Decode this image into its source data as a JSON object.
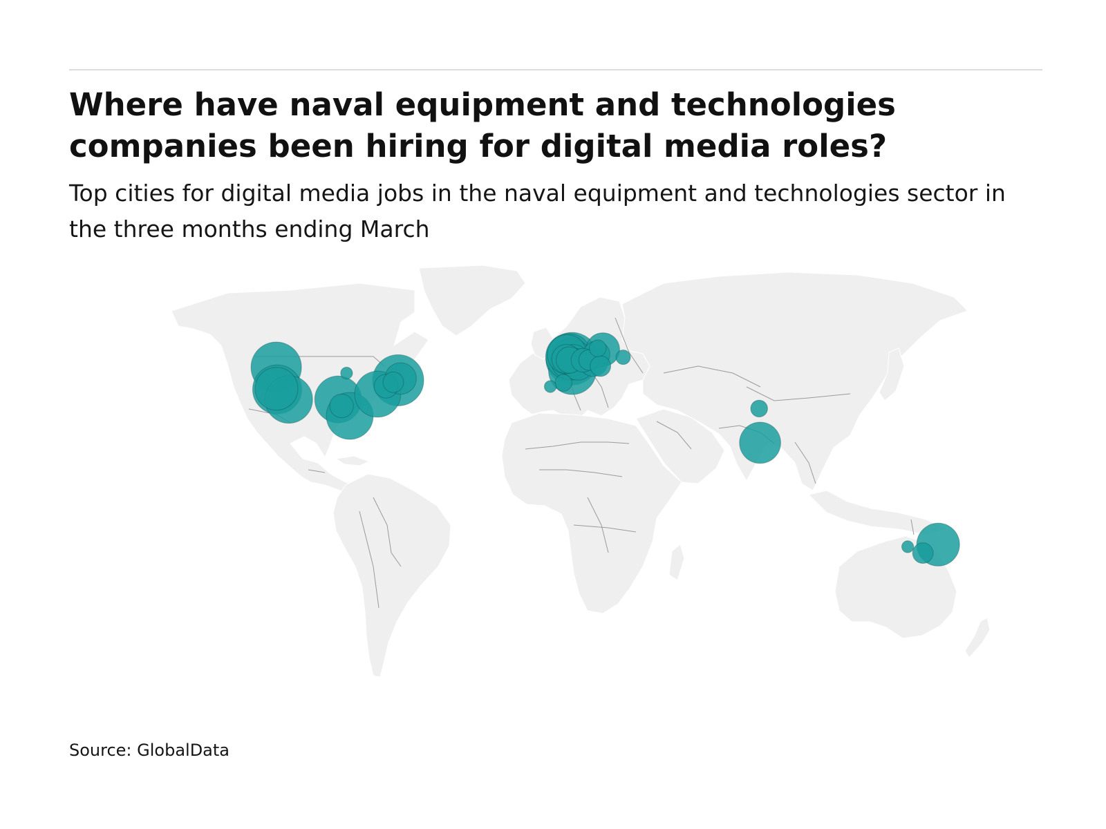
{
  "header": {
    "title": "Where have naval equipment and technologies companies been hiring for digital media roles?",
    "subtitle": "Top cities for digital media jobs in the naval equipment and technologies sector in the three months ending March"
  },
  "footer": {
    "source": "Source: GlobalData"
  },
  "colors": {
    "bubble": "#1a9e9e",
    "land": "#efefef",
    "border": "#9a9a9a",
    "rule": "#dcdcdc"
  },
  "chart_data": {
    "type": "bubble-map",
    "projection": "equirectangular",
    "bubbles": [
      {
        "lon": -122.4,
        "lat": 47.6,
        "value": 36
      },
      {
        "lon": -122.3,
        "lat": 37.7,
        "value": 26
      },
      {
        "lon": -122.0,
        "lat": 37.4,
        "value": 34
      },
      {
        "lon": -117.2,
        "lat": 32.8,
        "value": 32
      },
      {
        "lon": -93.3,
        "lat": 44.9,
        "value": 2
      },
      {
        "lon": -96.8,
        "lat": 32.8,
        "value": 31
      },
      {
        "lon": -95.4,
        "lat": 29.8,
        "value": 8
      },
      {
        "lon": -92.0,
        "lat": 25.2,
        "value": 31
      },
      {
        "lon": -80.5,
        "lat": 35.2,
        "value": 30
      },
      {
        "lon": -77.0,
        "lat": 38.9,
        "value": 8
      },
      {
        "lon": -74.0,
        "lat": 40.7,
        "value": 6
      },
      {
        "lon": -72.0,
        "lat": 41.6,
        "value": 37
      },
      {
        "lon": -71.0,
        "lat": 42.4,
        "value": 14
      },
      {
        "lon": -0.1,
        "lat": 51.5,
        "value": 39
      },
      {
        "lon": -1.5,
        "lat": 52.5,
        "value": 30
      },
      {
        "lon": -2.2,
        "lat": 53.5,
        "value": 22
      },
      {
        "lon": -0.5,
        "lat": 51.2,
        "value": 24
      },
      {
        "lon": 0.5,
        "lat": 50.8,
        "value": 14
      },
      {
        "lon": -2.5,
        "lat": 51.4,
        "value": 12
      },
      {
        "lon": -1.2,
        "lat": 50.9,
        "value": 10
      },
      {
        "lon": 0.0,
        "lat": 46.0,
        "value": 32
      },
      {
        "lon": 2.3,
        "lat": 48.9,
        "value": 14
      },
      {
        "lon": 4.4,
        "lat": 50.8,
        "value": 8
      },
      {
        "lon": 6.9,
        "lat": 50.9,
        "value": 6
      },
      {
        "lon": 8.7,
        "lat": 50.1,
        "value": 12
      },
      {
        "lon": 11.6,
        "lat": 48.1,
        "value": 6
      },
      {
        "lon": 10.0,
        "lat": 53.5,
        "value": 10
      },
      {
        "lon": 12.6,
        "lat": 55.7,
        "value": 16
      },
      {
        "lon": 10.5,
        "lat": 56.3,
        "value": 4
      },
      {
        "lon": 21.0,
        "lat": 52.2,
        "value": 3
      },
      {
        "lon": -3.7,
        "lat": 40.4,
        "value": 4
      },
      {
        "lon": -9.1,
        "lat": 38.7,
        "value": 2
      },
      {
        "lon": 77.2,
        "lat": 28.6,
        "value": 4
      },
      {
        "lon": 77.6,
        "lat": 12.9,
        "value": 24
      },
      {
        "lon": 151.2,
        "lat": -33.9,
        "value": 26
      },
      {
        "lon": 138.6,
        "lat": -34.9,
        "value": 2
      },
      {
        "lon": 144.9,
        "lat": -37.8,
        "value": 6
      }
    ]
  }
}
